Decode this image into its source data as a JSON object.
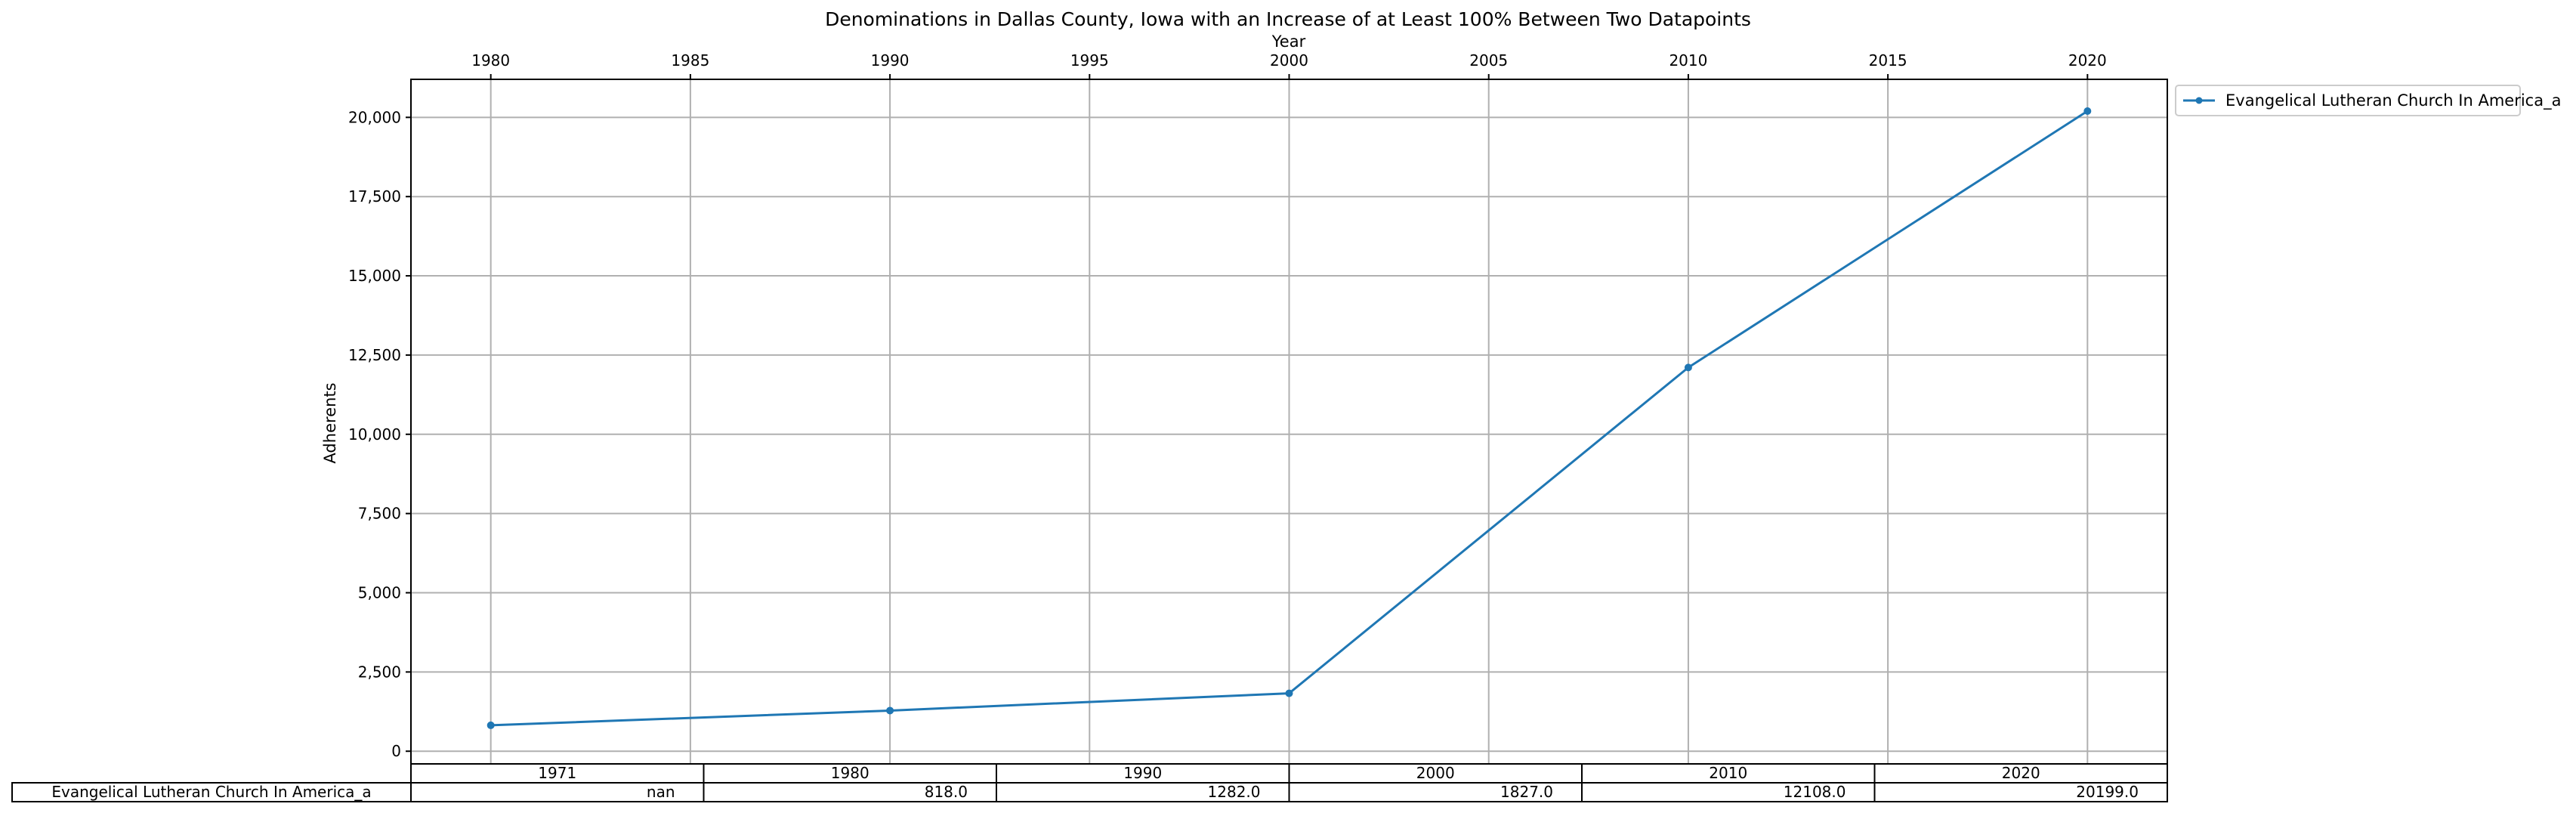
{
  "chart_data": {
    "type": "line",
    "title": "Denominations in Dallas County, Iowa with an Increase of at Least 100% Between Two Datapoints",
    "xlabel": "Year",
    "ylabel": "Adherents",
    "xlim": [
      1978,
      2022
    ],
    "ylim": [
      -400,
      21200
    ],
    "x_ticks": [
      1980,
      1985,
      1990,
      1995,
      2000,
      2005,
      2010,
      2015,
      2020
    ],
    "y_ticks": [
      0,
      2500,
      5000,
      7500,
      10000,
      12500,
      15000,
      17500,
      20000
    ],
    "y_tick_labels": [
      "0",
      "2,500",
      "5,000",
      "7,500",
      "10,000",
      "12,500",
      "15,000",
      "17,500",
      "20,000"
    ],
    "grid": true,
    "legend_position": "upper right, outside plot",
    "series": [
      {
        "name": "Evangelical Lutheran Church In America_a",
        "color": "#1f77b4",
        "marker": "circle",
        "x": [
          1980,
          1990,
          2000,
          2010,
          2020
        ],
        "y": [
          818,
          1282,
          1827,
          12108,
          20199
        ]
      }
    ],
    "table": {
      "columns": [
        "1971",
        "1980",
        "1990",
        "2000",
        "2010",
        "2020"
      ],
      "rows": [
        {
          "label": "Evangelical Lutheran Church In America_a",
          "cells": [
            "nan",
            "818.0",
            "1282.0",
            "1827.0",
            "12108.0",
            "20199.0"
          ]
        }
      ]
    }
  }
}
